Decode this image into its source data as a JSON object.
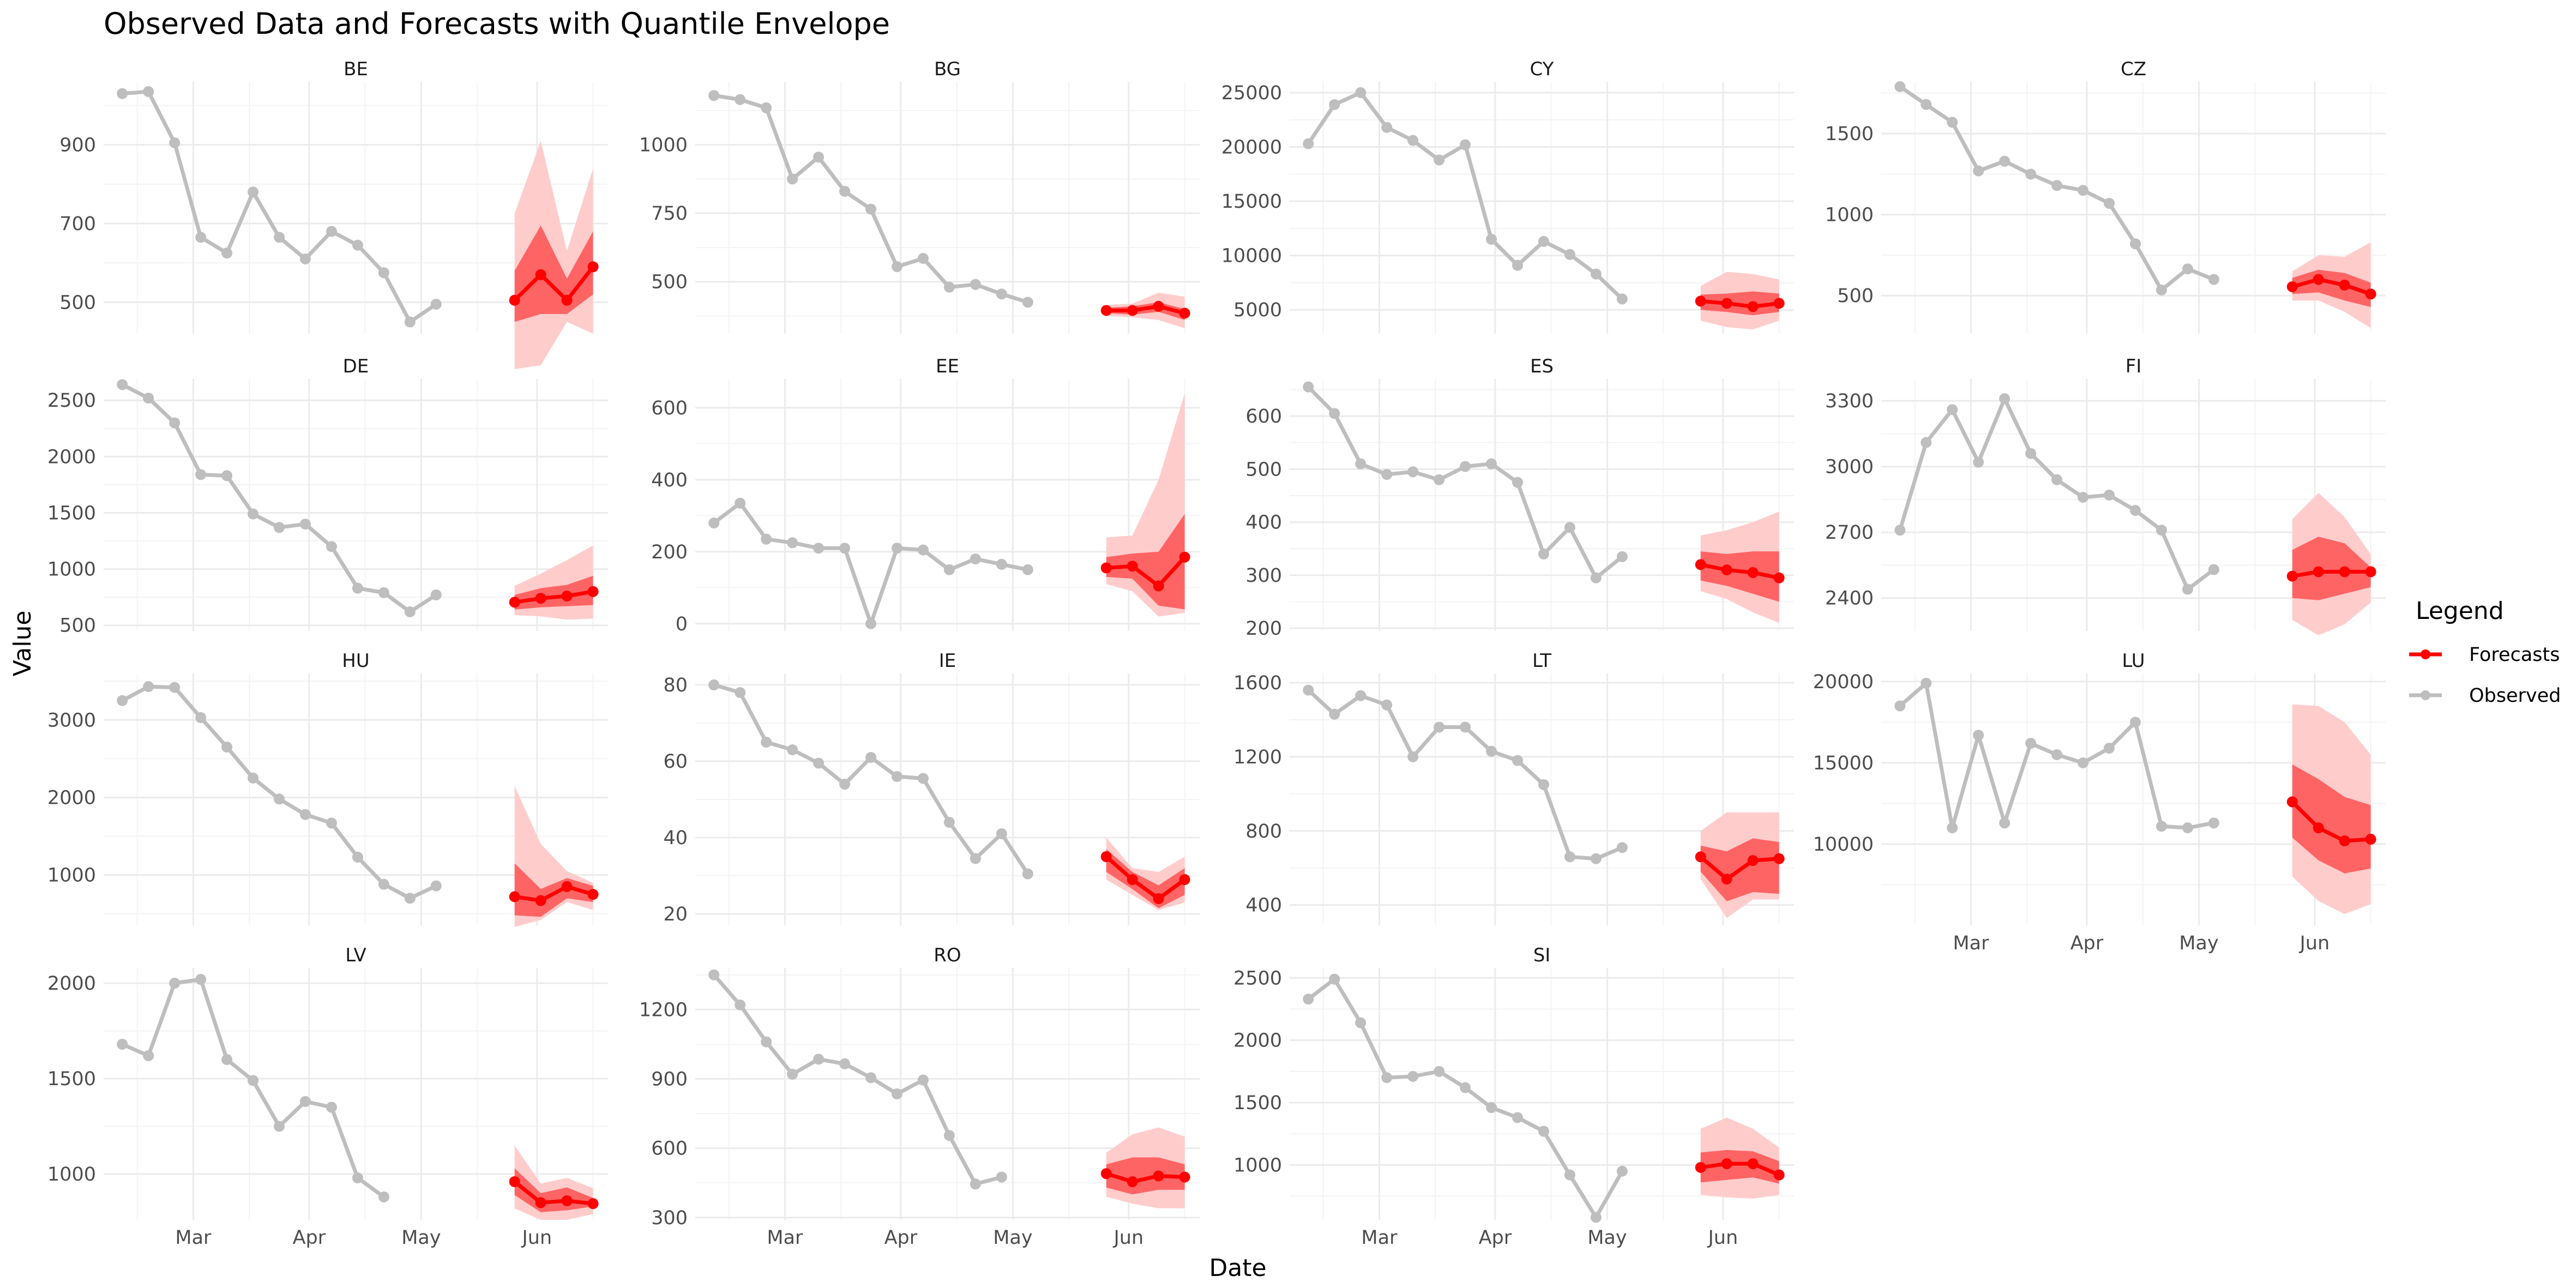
{
  "chart_data": {
    "type": "line",
    "title": "Observed Data and Forecasts with Quantile Envelope",
    "xlabel": "Date",
    "ylabel": "Value",
    "x_ticks": [
      "Mar",
      "Apr",
      "May",
      "Jun"
    ],
    "legend": {
      "title": "Legend",
      "placement": "right",
      "entries": [
        {
          "name": "Forecasts",
          "color": "#ff0000"
        },
        {
          "name": "Observed",
          "color": "#bebebe"
        }
      ]
    },
    "colors": {
      "observed": "#bebebe",
      "forecast": "#ff0000",
      "band_outer": "#ffcccc",
      "band_inner": "#ff6464"
    },
    "observed_dates": [
      "2024-02-11",
      "2024-02-18",
      "2024-02-25",
      "2024-03-03",
      "2024-03-10",
      "2024-03-17",
      "2024-03-24",
      "2024-03-31",
      "2024-04-07",
      "2024-04-14",
      "2024-04-21",
      "2024-04-28",
      "2024-05-05",
      "2024-05-12"
    ],
    "forecast_dates": [
      "2024-05-26",
      "2024-06-02",
      "2024-06-09",
      "2024-06-16"
    ],
    "panels": [
      {
        "label": "BE",
        "ylim": [
          420,
          1060
        ],
        "yticks": [
          500,
          700,
          900
        ],
        "observed": [
          1030,
          1035,
          905,
          665,
          625,
          780,
          665,
          610,
          680,
          645,
          575,
          450,
          495,
          null
        ],
        "forecast": [
          505,
          570,
          505,
          590
        ],
        "q_inner": [
          [
            450,
            580
          ],
          [
            470,
            695
          ],
          [
            470,
            560
          ],
          [
            520,
            680
          ]
        ],
        "q_outer": [
          [
            330,
            725
          ],
          [
            340,
            910
          ],
          [
            450,
            630
          ],
          [
            420,
            840
          ]
        ]
      },
      {
        "label": "BG",
        "ylim": [
          310,
          1230
        ],
        "yticks": [
          500,
          750,
          1000
        ],
        "observed": [
          1180,
          1165,
          1135,
          875,
          955,
          830,
          765,
          555,
          585,
          480,
          490,
          455,
          425,
          null
        ],
        "forecast": [
          395,
          395,
          410,
          385
        ],
        "q_inner": [
          [
            385,
            405
          ],
          [
            380,
            410
          ],
          [
            390,
            425
          ],
          [
            360,
            400
          ]
        ],
        "q_outer": [
          [
            375,
            415
          ],
          [
            370,
            420
          ],
          [
            360,
            460
          ],
          [
            330,
            445
          ]
        ]
      },
      {
        "label": "CY",
        "ylim": [
          2800,
          26000
        ],
        "yticks": [
          5000,
          10000,
          15000,
          20000,
          25000
        ],
        "observed": [
          20300,
          23900,
          25000,
          21800,
          20600,
          18800,
          20200,
          11500,
          9100,
          11300,
          10100,
          8300,
          6000,
          null
        ],
        "forecast": [
          5800,
          5600,
          5300,
          5600
        ],
        "q_inner": [
          [
            5000,
            6400
          ],
          [
            4800,
            6500
          ],
          [
            4500,
            6700
          ],
          [
            4800,
            6500
          ]
        ],
        "q_outer": [
          [
            4000,
            7200
          ],
          [
            3400,
            8500
          ],
          [
            3200,
            8300
          ],
          [
            4000,
            7800
          ]
        ]
      },
      {
        "label": "CZ",
        "ylim": [
          265,
          1820
        ],
        "yticks": [
          500,
          1000,
          1500
        ],
        "observed": [
          1790,
          1680,
          1570,
          1270,
          1330,
          1250,
          1180,
          1150,
          1070,
          820,
          535,
          665,
          600,
          null
        ],
        "forecast": [
          555,
          600,
          565,
          510
        ],
        "q_inner": [
          [
            510,
            610
          ],
          [
            520,
            660
          ],
          [
            470,
            640
          ],
          [
            430,
            580
          ]
        ],
        "q_outer": [
          [
            470,
            650
          ],
          [
            470,
            750
          ],
          [
            400,
            740
          ],
          [
            300,
            830
          ]
        ]
      },
      {
        "label": "DE",
        "ylim": [
          450,
          2690
        ],
        "yticks": [
          500,
          1000,
          1500,
          2000,
          2500
        ],
        "observed": [
          2640,
          2520,
          2300,
          1840,
          1830,
          1490,
          1370,
          1400,
          1200,
          830,
          790,
          620,
          770,
          null
        ],
        "forecast": [
          705,
          740,
          760,
          800
        ],
        "q_inner": [
          [
            640,
            770
          ],
          [
            660,
            830
          ],
          [
            670,
            860
          ],
          [
            680,
            940
          ]
        ],
        "q_outer": [
          [
            590,
            850
          ],
          [
            580,
            960
          ],
          [
            550,
            1080
          ],
          [
            560,
            1210
          ]
        ]
      },
      {
        "label": "EE",
        "ylim": [
          -20,
          680
        ],
        "yticks": [
          0,
          200,
          400,
          600
        ],
        "observed": [
          280,
          335,
          235,
          225,
          210,
          210,
          0,
          210,
          205,
          150,
          180,
          165,
          150,
          null
        ],
        "forecast": [
          155,
          160,
          105,
          185
        ],
        "q_inner": [
          [
            130,
            185
          ],
          [
            125,
            195
          ],
          [
            50,
            200
          ],
          [
            40,
            305
          ]
        ],
        "q_outer": [
          [
            110,
            240
          ],
          [
            90,
            245
          ],
          [
            20,
            400
          ],
          [
            30,
            640
          ]
        ]
      },
      {
        "label": "ES",
        "ylim": [
          195,
          670
        ],
        "yticks": [
          200,
          300,
          400,
          500,
          600
        ],
        "observed": [
          655,
          605,
          510,
          490,
          495,
          480,
          505,
          510,
          475,
          340,
          390,
          295,
          335,
          null
        ],
        "forecast": [
          320,
          310,
          305,
          295
        ],
        "q_inner": [
          [
            290,
            345
          ],
          [
            280,
            340
          ],
          [
            265,
            345
          ],
          [
            250,
            345
          ]
        ],
        "q_outer": [
          [
            270,
            375
          ],
          [
            255,
            385
          ],
          [
            230,
            400
          ],
          [
            210,
            420
          ]
        ]
      },
      {
        "label": "FI",
        "ylim": [
          2250,
          3400
        ],
        "yticks": [
          2400,
          2700,
          3000,
          3300
        ],
        "observed": [
          2710,
          3110,
          3260,
          3020,
          3310,
          3060,
          2940,
          2860,
          2870,
          2800,
          2710,
          2440,
          2530,
          null
        ],
        "forecast": [
          2500,
          2520,
          2520,
          2520
        ],
        "q_inner": [
          [
            2400,
            2620
          ],
          [
            2390,
            2680
          ],
          [
            2420,
            2650
          ],
          [
            2450,
            2540
          ]
        ],
        "q_outer": [
          [
            2300,
            2760
          ],
          [
            2230,
            2880
          ],
          [
            2280,
            2770
          ],
          [
            2380,
            2600
          ]
        ]
      },
      {
        "label": "HU",
        "ylim": [
          350,
          3600
        ],
        "yticks": [
          1000,
          2000,
          3000
        ],
        "observed": [
          3250,
          3430,
          3420,
          3030,
          2650,
          2250,
          1980,
          1780,
          1670,
          1230,
          880,
          700,
          860,
          null
        ],
        "forecast": [
          720,
          670,
          850,
          750
        ],
        "q_inner": [
          [
            480,
            1150
          ],
          [
            460,
            820
          ],
          [
            700,
            960
          ],
          [
            650,
            860
          ]
        ],
        "q_outer": [
          [
            330,
            2150
          ],
          [
            420,
            1400
          ],
          [
            650,
            1050
          ],
          [
            550,
            900
          ]
        ]
      },
      {
        "label": "IE",
        "ylim": [
          17,
          83
        ],
        "yticks": [
          20,
          40,
          60,
          80
        ],
        "observed": [
          80,
          78,
          65,
          63,
          59.5,
          54,
          61,
          56,
          55.5,
          44,
          34.5,
          41,
          30.5,
          null
        ],
        "forecast": [
          35,
          29,
          24,
          29
        ],
        "q_inner": [
          [
            31,
            37
          ],
          [
            26.5,
            31
          ],
          [
            21.5,
            27.5
          ],
          [
            25,
            32
          ]
        ],
        "q_outer": [
          [
            29,
            40
          ],
          [
            25,
            32
          ],
          [
            21,
            31
          ],
          [
            23,
            35
          ]
        ]
      },
      {
        "label": "LT",
        "ylim": [
          290,
          1650
        ],
        "yticks": [
          400,
          800,
          1200,
          1600
        ],
        "observed": [
          1560,
          1430,
          1530,
          1480,
          1200,
          1360,
          1360,
          1230,
          1180,
          1050,
          660,
          650,
          710,
          null
        ],
        "forecast": [
          660,
          540,
          640,
          650
        ],
        "q_inner": [
          [
            580,
            720
          ],
          [
            420,
            690
          ],
          [
            470,
            760
          ],
          [
            460,
            740
          ]
        ],
        "q_outer": [
          [
            540,
            800
          ],
          [
            330,
            900
          ],
          [
            430,
            900
          ],
          [
            430,
            900
          ]
        ]
      },
      {
        "label": "LU",
        "ylim": [
          5000,
          20500
        ],
        "yticks": [
          10000,
          15000,
          20000
        ],
        "observed": [
          18500,
          19900,
          11000,
          16700,
          11300,
          16200,
          15500,
          15000,
          15900,
          17500,
          11100,
          11000,
          11300,
          null
        ],
        "forecast": [
          12600,
          11000,
          10200,
          10300
        ],
        "q_inner": [
          [
            10400,
            14900
          ],
          [
            9000,
            14000
          ],
          [
            8200,
            12900
          ],
          [
            8500,
            12400
          ]
        ],
        "q_outer": [
          [
            8000,
            18600
          ],
          [
            6500,
            18500
          ],
          [
            5700,
            17500
          ],
          [
            6300,
            15500
          ]
        ]
      },
      {
        "label": "LV",
        "ylim": [
          760,
          2080
        ],
        "yticks": [
          1000,
          1500,
          2000
        ],
        "observed": [
          1680,
          1620,
          2000,
          2020,
          1600,
          1490,
          1250,
          1380,
          1350,
          980,
          880,
          null,
          null,
          null
        ],
        "forecast": [
          960,
          850,
          860,
          845
        ],
        "q_inner": [
          [
            890,
            1030
          ],
          [
            800,
            900
          ],
          [
            810,
            930
          ],
          [
            830,
            875
          ]
        ],
        "q_outer": [
          [
            820,
            1150
          ],
          [
            760,
            950
          ],
          [
            760,
            980
          ],
          [
            790,
            925
          ]
        ]
      },
      {
        "label": "RO",
        "ylim": [
          290,
          1380
        ],
        "yticks": [
          300,
          600,
          900,
          1200
        ],
        "observed": [
          1350,
          1220,
          1060,
          920,
          985,
          965,
          905,
          835,
          895,
          655,
          445,
          475,
          null,
          null
        ],
        "forecast": [
          490,
          455,
          480,
          475
        ],
        "q_inner": [
          [
            430,
            530
          ],
          [
            400,
            560
          ],
          [
            420,
            560
          ],
          [
            420,
            530
          ]
        ],
        "q_outer": [
          [
            390,
            580
          ],
          [
            360,
            660
          ],
          [
            340,
            690
          ],
          [
            340,
            650
          ]
        ]
      },
      {
        "label": "SI",
        "ylim": [
          560,
          2580
        ],
        "yticks": [
          1000,
          1500,
          2000,
          2500
        ],
        "observed": [
          2330,
          2490,
          2140,
          1700,
          1710,
          1750,
          1620,
          1460,
          1380,
          1270,
          920,
          580,
          950,
          null
        ],
        "forecast": [
          980,
          1010,
          1010,
          920
        ],
        "q_inner": [
          [
            860,
            1100
          ],
          [
            880,
            1120
          ],
          [
            900,
            1110
          ],
          [
            850,
            1030
          ]
        ],
        "q_outer": [
          [
            760,
            1290
          ],
          [
            740,
            1380
          ],
          [
            730,
            1290
          ],
          [
            760,
            1140
          ]
        ]
      }
    ]
  }
}
